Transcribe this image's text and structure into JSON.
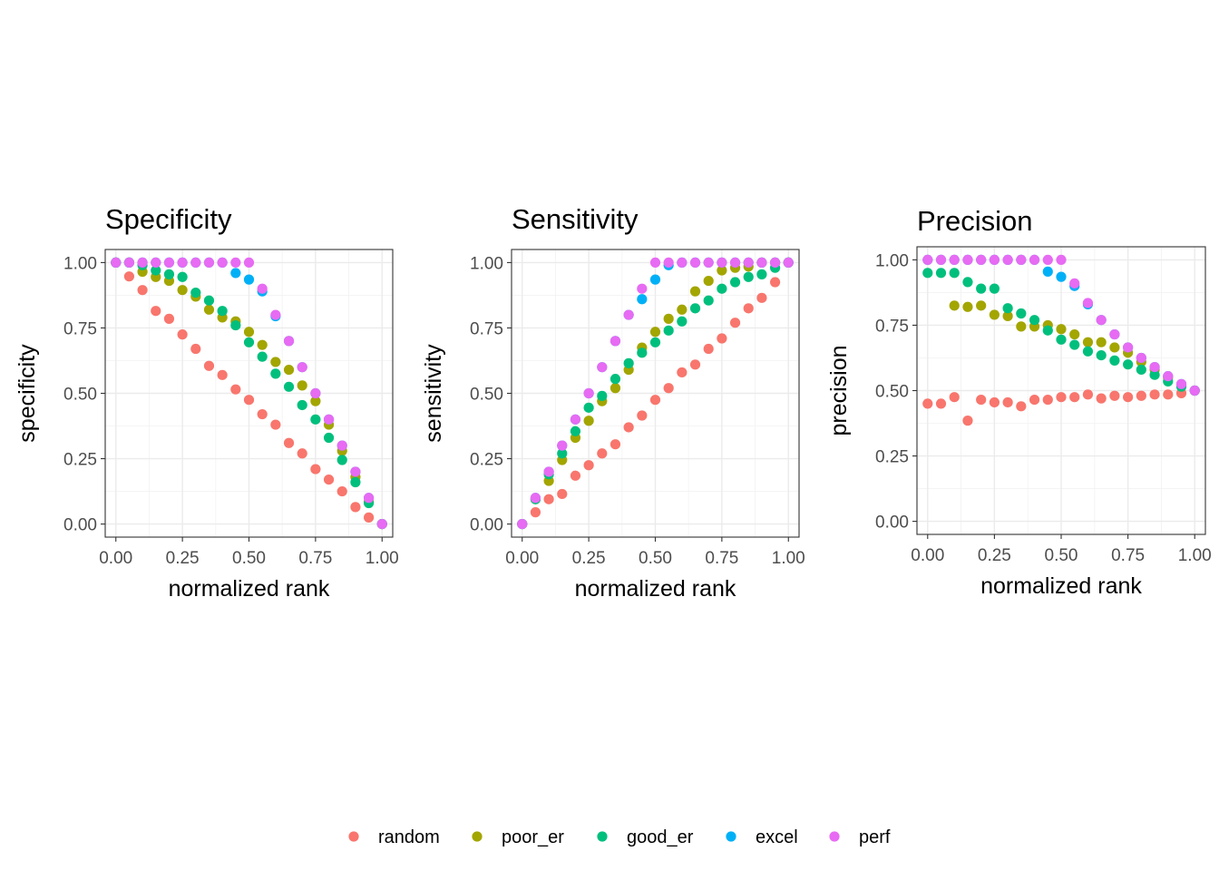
{
  "chart_data": {
    "type": "scatter",
    "legend": {
      "position": "bottom",
      "entries": [
        {
          "name": "random",
          "color": "#F8766D"
        },
        {
          "name": "poor_er",
          "color": "#A3A500"
        },
        {
          "name": "good_er",
          "color": "#00BF7D"
        },
        {
          "name": "excel",
          "color": "#00B0F6"
        },
        {
          "name": "perf",
          "color": "#E76BF3"
        }
      ]
    },
    "panels": [
      {
        "title": "Specificity",
        "xlabel": "normalized rank",
        "ylabel": "specificity",
        "xlim": [
          -0.04,
          1.04
        ],
        "ylim": [
          -0.05,
          1.05
        ],
        "xticks": [
          "0.00",
          "0.25",
          "0.50",
          "0.75",
          "1.00"
        ],
        "yticks": [
          "0.00",
          "0.25",
          "0.50",
          "0.75",
          "1.00"
        ],
        "grid": true,
        "x": [
          0,
          0.05,
          0.1,
          0.15,
          0.2,
          0.25,
          0.3,
          0.35,
          0.4,
          0.45,
          0.5,
          0.55,
          0.6,
          0.65,
          0.7,
          0.75,
          0.8,
          0.85,
          0.9,
          0.95,
          1.0
        ],
        "series": [
          {
            "name": "random",
            "values": [
              1.0,
              0.947,
              0.895,
              0.815,
              0.785,
              0.725,
              0.67,
              0.605,
              0.57,
              0.515,
              0.475,
              0.42,
              0.38,
              0.31,
              0.27,
              0.21,
              0.17,
              0.125,
              0.065,
              0.025,
              0.0
            ]
          },
          {
            "name": "poor_er",
            "values": [
              1.0,
              1.0,
              0.965,
              0.945,
              0.93,
              0.895,
              0.87,
              0.82,
              0.79,
              0.775,
              0.735,
              0.685,
              0.62,
              0.59,
              0.53,
              0.47,
              0.38,
              0.28,
              0.18,
              0.085,
              0.0
            ]
          },
          {
            "name": "good_er",
            "values": [
              1.0,
              1.0,
              0.99,
              0.97,
              0.955,
              0.945,
              0.885,
              0.855,
              0.815,
              0.76,
              0.695,
              0.64,
              0.575,
              0.525,
              0.455,
              0.4,
              0.33,
              0.245,
              0.16,
              0.08,
              0.0
            ]
          },
          {
            "name": "excel",
            "values": [
              1.0,
              1.0,
              1.0,
              1.0,
              1.0,
              1.0,
              1.0,
              1.0,
              1.0,
              0.96,
              0.935,
              0.89,
              0.795,
              0.7,
              0.6,
              0.5,
              0.4,
              0.3,
              0.2,
              0.1,
              0.0
            ]
          },
          {
            "name": "perf",
            "values": [
              1.0,
              1.0,
              1.0,
              1.0,
              1.0,
              1.0,
              1.0,
              1.0,
              1.0,
              1.0,
              1.0,
              0.9,
              0.8,
              0.7,
              0.6,
              0.5,
              0.4,
              0.3,
              0.2,
              0.1,
              0.0
            ]
          }
        ]
      },
      {
        "title": "Sensitivity",
        "xlabel": "normalized rank",
        "ylabel": "sensitivity",
        "xlim": [
          -0.04,
          1.04
        ],
        "ylim": [
          -0.05,
          1.05
        ],
        "xticks": [
          "0.00",
          "0.25",
          "0.50",
          "0.75",
          "1.00"
        ],
        "yticks": [
          "0.00",
          "0.25",
          "0.50",
          "0.75",
          "1.00"
        ],
        "grid": true,
        "x": [
          0,
          0.05,
          0.1,
          0.15,
          0.2,
          0.25,
          0.3,
          0.35,
          0.4,
          0.45,
          0.5,
          0.55,
          0.6,
          0.65,
          0.7,
          0.75,
          0.8,
          0.85,
          0.9,
          0.95,
          1.0
        ],
        "series": [
          {
            "name": "random",
            "values": [
              0.0,
              0.045,
              0.095,
              0.115,
              0.185,
              0.225,
              0.27,
              0.305,
              0.37,
              0.415,
              0.475,
              0.52,
              0.58,
              0.61,
              0.67,
              0.71,
              0.77,
              0.825,
              0.865,
              0.925,
              1.0
            ]
          },
          {
            "name": "poor_er",
            "values": [
              0.0,
              0.095,
              0.165,
              0.245,
              0.33,
              0.395,
              0.47,
              0.52,
              0.59,
              0.675,
              0.735,
              0.785,
              0.82,
              0.89,
              0.93,
              0.97,
              0.98,
              0.985,
              1.0,
              1.0,
              1.0
            ]
          },
          {
            "name": "good_er",
            "values": [
              0.0,
              0.095,
              0.19,
              0.27,
              0.355,
              0.445,
              0.49,
              0.555,
              0.615,
              0.655,
              0.695,
              0.74,
              0.775,
              0.825,
              0.855,
              0.9,
              0.925,
              0.945,
              0.955,
              0.98,
              1.0
            ]
          },
          {
            "name": "excel",
            "values": [
              0.0,
              0.1,
              0.2,
              0.3,
              0.4,
              0.5,
              0.6,
              0.7,
              0.8,
              0.86,
              0.935,
              0.99,
              1.0,
              1.0,
              1.0,
              1.0,
              1.0,
              1.0,
              1.0,
              1.0,
              1.0
            ]
          },
          {
            "name": "perf",
            "values": [
              0.0,
              0.1,
              0.2,
              0.3,
              0.4,
              0.5,
              0.6,
              0.7,
              0.8,
              0.9,
              1.0,
              1.0,
              1.0,
              1.0,
              1.0,
              1.0,
              1.0,
              1.0,
              1.0,
              1.0,
              1.0
            ]
          }
        ]
      },
      {
        "title": "Precision",
        "xlabel": "normalized rank",
        "ylabel": "precision",
        "xlim": [
          -0.04,
          1.04
        ],
        "ylim": [
          -0.05,
          1.05
        ],
        "xticks": [
          "0.00",
          "0.25",
          "0.50",
          "0.75",
          "1.00"
        ],
        "yticks": [
          "0.00",
          "0.25",
          "0.50",
          "0.75",
          "1.00"
        ],
        "grid": true,
        "x": [
          0,
          0.05,
          0.1,
          0.15,
          0.2,
          0.25,
          0.3,
          0.35,
          0.4,
          0.45,
          0.5,
          0.55,
          0.6,
          0.65,
          0.7,
          0.75,
          0.8,
          0.85,
          0.9,
          0.95,
          1.0
        ],
        "series": [
          {
            "name": "random",
            "values": [
              0.45,
              0.45,
              0.475,
              0.385,
              0.465,
              0.455,
              0.455,
              0.44,
              0.465,
              0.465,
              0.475,
              0.475,
              0.485,
              0.47,
              0.48,
              0.475,
              0.48,
              0.485,
              0.485,
              0.49,
              0.5
            ]
          },
          {
            "name": "poor_er",
            "values": [
              null,
              null,
              0.825,
              0.82,
              0.825,
              0.79,
              0.785,
              0.745,
              0.745,
              0.75,
              0.735,
              0.715,
              0.685,
              0.685,
              0.665,
              0.645,
              0.61,
              0.58,
              0.55,
              0.52,
              0.5
            ]
          },
          {
            "name": "good_er",
            "values": [
              0.95,
              0.95,
              0.95,
              0.915,
              0.89,
              0.89,
              0.815,
              0.795,
              0.77,
              0.73,
              0.695,
              0.675,
              0.65,
              0.635,
              0.615,
              0.6,
              0.58,
              0.56,
              0.535,
              0.515,
              0.5
            ]
          },
          {
            "name": "excel",
            "values": [
              1.0,
              1.0,
              1.0,
              1.0,
              1.0,
              1.0,
              1.0,
              1.0,
              1.0,
              0.955,
              0.935,
              0.9,
              0.83,
              0.77,
              0.715,
              0.665,
              0.625,
              0.59,
              0.555,
              0.525,
              0.5
            ]
          },
          {
            "name": "perf",
            "values": [
              1.0,
              1.0,
              1.0,
              1.0,
              1.0,
              1.0,
              1.0,
              1.0,
              1.0,
              1.0,
              1.0,
              0.91,
              0.835,
              0.77,
              0.715,
              0.665,
              0.625,
              0.59,
              0.555,
              0.525,
              0.5
            ]
          }
        ]
      }
    ]
  }
}
